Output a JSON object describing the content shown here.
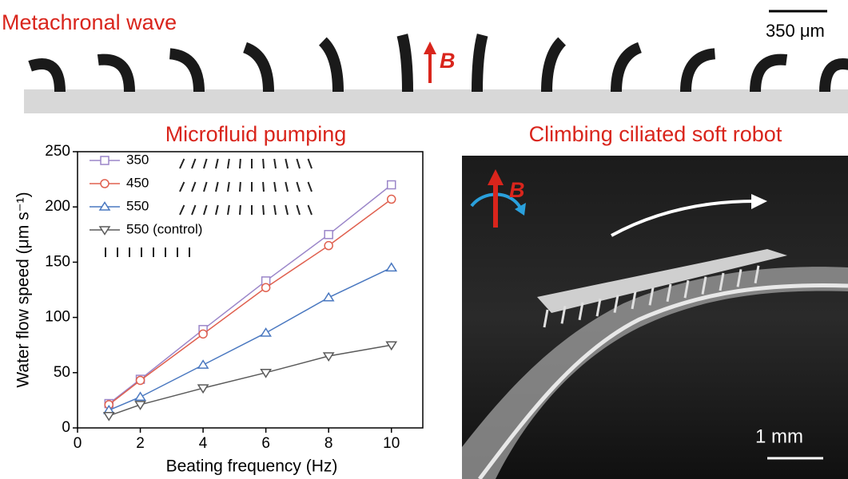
{
  "panels": {
    "top": {
      "title": "Metachronal wave",
      "scale": "350 μm",
      "field": "B"
    },
    "right": {
      "title": "Climbing ciliated soft robot",
      "field": "B",
      "scale": "1 mm"
    }
  },
  "chart_data": {
    "type": "line",
    "title": "Microfluid pumping",
    "x_label": "Beating frequency (Hz)",
    "y_label": "Water flow speed (μm s⁻¹)",
    "x": [
      1,
      2,
      4,
      6,
      8,
      10
    ],
    "series": [
      {
        "name": "350",
        "color": "#9b86c9",
        "marker": "square",
        "values": [
          22,
          44,
          89,
          133,
          175,
          220
        ]
      },
      {
        "name": "450",
        "color": "#e0604f",
        "marker": "circle",
        "values": [
          21,
          43,
          85,
          127,
          165,
          207
        ]
      },
      {
        "name": "550",
        "color": "#4a78c0",
        "marker": "triangle-up",
        "values": [
          16,
          28,
          57,
          86,
          118,
          145
        ]
      },
      {
        "name": "550 (control)",
        "color": "#5a5a5a",
        "marker": "triangle-down",
        "values": [
          11,
          21,
          36,
          50,
          65,
          75
        ]
      }
    ],
    "xlim": [
      0,
      11
    ],
    "xticks": [
      0,
      2,
      4,
      6,
      8,
      10
    ],
    "ylim": [
      0,
      250
    ],
    "yticks": [
      0,
      50,
      100,
      150,
      200,
      250
    ]
  }
}
